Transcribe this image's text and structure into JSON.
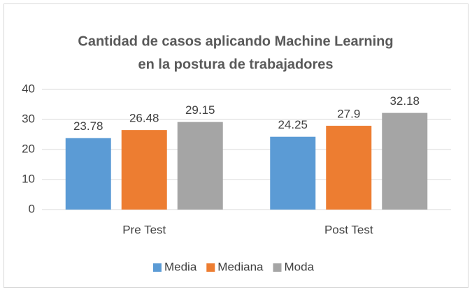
{
  "chart_data": {
    "type": "bar",
    "title": [
      "Cantidad de casos aplicando Machine Learning",
      "en la postura de trabajadores"
    ],
    "categories": [
      "Pre Test",
      "Post Test"
    ],
    "series": [
      {
        "name": "Media",
        "color": "#5b9bd5",
        "values": [
          23.78,
          24.25
        ]
      },
      {
        "name": "Mediana",
        "color": "#ed7d31",
        "values": [
          26.48,
          27.9
        ]
      },
      {
        "name": "Moda",
        "color": "#a5a5a5",
        "values": [
          29.15,
          32.18
        ]
      }
    ],
    "ylim": [
      0,
      40
    ],
    "yticks": [
      0,
      10,
      20,
      30,
      40
    ],
    "grid": true,
    "legend": "bottom"
  }
}
